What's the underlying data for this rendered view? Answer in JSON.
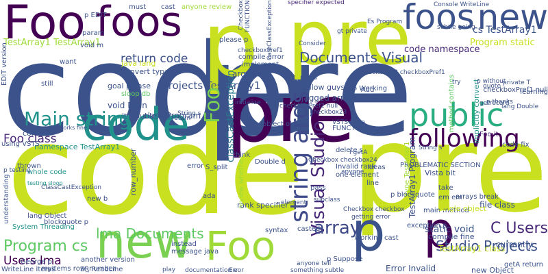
{
  "cloud": {
    "words": [
      {
        "text": "code",
        "color": "#3b528b"
      },
      {
        "text": "pre",
        "color": "#3b528b"
      },
      {
        "text": "code",
        "color": "#c8e020"
      },
      {
        "text": "pre",
        "color": "#c8e020"
      },
      {
        "text": "pre",
        "color": "#440154"
      },
      {
        "text": "p",
        "color": "#c8e020"
      },
      {
        "text": "pre",
        "color": "#c8e020"
      },
      {
        "text": "Foo",
        "color": "#440154"
      },
      {
        "text": "foos",
        "color": "#440154"
      },
      {
        "text": "foos",
        "color": "#3b528b"
      },
      {
        "text": "new",
        "color": "#3b528b"
      },
      {
        "text": "code",
        "color": "#21918c"
      },
      {
        "text": "new",
        "color": "#7ad151"
      },
      {
        "text": "Foo",
        "color": "#a0da39"
      },
      {
        "text": "p",
        "color": "#3b528b"
      },
      {
        "text": "p",
        "color": "#440154"
      },
      {
        "text": "public",
        "color": "#28ae80"
      },
      {
        "text": "following",
        "color": "#440154"
      },
      {
        "text": "Main string",
        "color": "#21918c"
      },
      {
        "text": "Documents Visual",
        "color": "#3b528b"
      },
      {
        "text": "Projects TestArray1",
        "color": "#3b528b"
      },
      {
        "text": "return code",
        "color": "#3b528b"
      },
      {
        "text": "TestArray1 TestArray1",
        "color": "#a0da39"
      },
      {
        "text": "code namespace",
        "color": "#482878"
      },
      {
        "text": "cs TestArray1",
        "color": "#3b528b"
      },
      {
        "text": "Program static",
        "color": "#c8e020"
      },
      {
        "text": "string args",
        "color": "#3e4a89"
      },
      {
        "text": "Visual Studio",
        "color": "#482878"
      },
      {
        "text": "classCastException",
        "color": "#2a788e"
      },
      {
        "text": "Foo",
        "color": "#7ad151"
      },
      {
        "text": "lma Documents",
        "color": "#5ec962"
      },
      {
        "text": "Program cs",
        "color": "#5ec962"
      },
      {
        "text": "Users lma",
        "color": "#440154"
      },
      {
        "text": "array",
        "color": "#3e4a89"
      },
      {
        "text": "C Users",
        "color": "#482878"
      },
      {
        "text": "Studio Projects",
        "color": "#3b528b"
      },
      {
        "text": "TestArray1 class",
        "color": "#c8e020"
      },
      {
        "text": "static void",
        "color": "#3b528b"
      },
      {
        "text": "Error Invalid",
        "color": "#3b528b"
      },
      {
        "text": "class Program",
        "color": "#3b528b"
      },
      {
        "text": "void Main",
        "color": "#3b528b"
      },
      {
        "text": "args Foo",
        "color": "#3b528b"
      },
      {
        "text": "jagged array",
        "color": "#3b528b"
      },
      {
        "text": "fellow guys",
        "color": "#3b528b"
      },
      {
        "text": "Foo class",
        "color": "#482878"
      },
      {
        "text": "namespace TestArray1",
        "color": "#21918c"
      },
      {
        "text": "java lang",
        "color": "#c8e020"
      },
      {
        "text": "file class",
        "color": "#3b528b"
      },
      {
        "text": "currently",
        "color": "#3b528b"
      },
      {
        "text": "specifier expected",
        "color": "#482878"
      },
      {
        "text": "Es Program",
        "color": "#3b528b"
      },
      {
        "text": "Vista bit",
        "color": "#3b528b"
      },
      {
        "text": "Foo it",
        "color": "#482878"
      },
      {
        "text": "whole code",
        "color": "#21918c"
      },
      {
        "text": "testing sloop",
        "color": "#21918c"
      },
      {
        "text": "rank specifier",
        "color": "#3b528b"
      },
      {
        "text": "review whether",
        "color": "#a0da39"
      },
      {
        "text": "TestArray1 Program",
        "color": "#3b528b"
      },
      {
        "text": "Invalid rank",
        "color": "#3b528b"
      },
      {
        "text": "FUNCTION",
        "color": "#3b528b"
      },
      {
        "text": "one element",
        "color": "#3b528b"
      },
      {
        "text": "PROBLEMATIC SECTION",
        "color": "#3b528b"
      },
      {
        "text": "delete s",
        "color": "#3b528b"
      },
      {
        "text": "code fix",
        "color": "#3b528b"
      },
      {
        "text": "lt Double",
        "color": "#3b528b"
      },
      {
        "text": "Double d",
        "color": "#3b528b"
      },
      {
        "text": "object object",
        "color": "#3b528b"
      },
      {
        "text": "goal please",
        "color": "#3b528b"
      },
      {
        "text": "sloop db",
        "color": "#5ec962"
      },
      {
        "text": "convert type",
        "color": "#3b528b"
      },
      {
        "text": "implicitly convert",
        "color": "#21918c"
      },
      {
        "text": "method contains",
        "color": "#5ec962"
      },
      {
        "text": "learning",
        "color": "#3b528b"
      },
      {
        "text": "checkboxPref1 null",
        "color": "#3b528b"
      },
      {
        "text": "ideas",
        "color": "#3b528b"
      },
      {
        "text": "line",
        "color": "#3b528b"
      },
      {
        "text": "take",
        "color": "#3b528b"
      },
      {
        "text": "arrays break",
        "color": "#3b528b"
      },
      {
        "text": "compile fine",
        "color": "#3b528b"
      },
      {
        "text": "main method",
        "color": "#3b528b"
      },
      {
        "text": "exception p",
        "color": "#3b528b"
      },
      {
        "text": "Working cast",
        "color": "#3b528b"
      },
      {
        "text": "pass",
        "color": "#3b528b"
      },
      {
        "text": "casted",
        "color": "#3b528b"
      },
      {
        "text": "syntax",
        "color": "#3b528b"
      },
      {
        "text": "instead",
        "color": "#3b528b"
      },
      {
        "text": "message java",
        "color": "#3b528b"
      },
      {
        "text": "System Threading",
        "color": "#21918c"
      },
      {
        "text": "new b",
        "color": "#3b528b"
      },
      {
        "text": "S_split",
        "color": "#3b528b"
      },
      {
        "text": "blockquote p",
        "color": "#3b528b"
      },
      {
        "text": "row_number",
        "color": "#3b528b"
      },
      {
        "text": "think",
        "color": "#3b528b"
      },
      {
        "text": "thrown",
        "color": "#3b528b"
      },
      {
        "text": "correct",
        "color": "#3b528b"
      },
      {
        "text": "using VSTS",
        "color": "#3b528b"
      },
      {
        "text": "EDIT version",
        "color": "#3b528b"
      },
      {
        "text": "still",
        "color": "#3b528b"
      },
      {
        "text": "want",
        "color": "#3b528b"
      },
      {
        "text": "void m",
        "color": "#3b528b"
      },
      {
        "text": "param",
        "color": "#3b528b"
      },
      {
        "text": "p EDIT",
        "color": "#3b528b"
      },
      {
        "text": "must",
        "color": "#3b528b"
      },
      {
        "text": "cast",
        "color": "#3b528b"
      },
      {
        "text": "anyone review",
        "color": "#a0da39"
      },
      {
        "text": "please p",
        "color": "#3b528b"
      },
      {
        "text": "compile error",
        "color": "#3b528b"
      },
      {
        "text": "implement",
        "color": "#3b528b"
      },
      {
        "text": "need",
        "color": "#3b528b"
      },
      {
        "text": "o Working",
        "color": "#3b528b"
      },
      {
        "text": "Add",
        "color": "#3b528b"
      },
      {
        "text": "Console WriteLine",
        "color": "#3b528b"
      },
      {
        "text": "subtle going",
        "color": "#3b528b"
      },
      {
        "text": "gt private",
        "color": "#3b528b"
      },
      {
        "text": "error",
        "color": "#3b528b"
      },
      {
        "text": "ada",
        "color": "#3b528b"
      },
      {
        "text": "em em",
        "color": "#3b528b"
      },
      {
        "text": "single object",
        "color": "#c8e020"
      },
      {
        "text": "type TestArray1",
        "color": "#a0da39"
      },
      {
        "text": "p blockquote",
        "color": "#3b528b"
      },
      {
        "text": "p Suppose",
        "color": "#3b528b"
      },
      {
        "text": "new Object",
        "color": "#3b528b"
      },
      {
        "text": "another version",
        "color": "#3b528b"
      },
      {
        "text": "getA return",
        "color": "#3b528b"
      },
      {
        "text": "understanding",
        "color": "#3b528b"
      },
      {
        "text": "myItems row_number",
        "color": "#3b528b"
      },
      {
        "text": "SR ReadLine",
        "color": "#3b528b"
      },
      {
        "text": "WriteLine Items",
        "color": "#3b528b"
      },
      {
        "text": "George p",
        "color": "#3b528b"
      },
      {
        "text": "lang Object",
        "color": "#3b528b"
      },
      {
        "text": "S SR works fine",
        "color": "#3b528b"
      },
      {
        "text": "p testing",
        "color": "#3b528b"
      },
      {
        "text": "Checkbox checkbox24",
        "color": "#3b528b"
      },
      {
        "text": "checkboxPref2 null",
        "color": "#3b528b"
      },
      {
        "text": "checkbox23 checkboxPref1",
        "color": "#3b528b"
      },
      {
        "text": "null checkbox23",
        "color": "#3b528b"
      },
      {
        "text": "I getA",
        "color": "#3b528b"
      },
      {
        "text": "Checkbox checkbox",
        "color": "#3b528b"
      },
      {
        "text": "VSTS Vista",
        "color": "#3b528b"
      },
      {
        "text": "anyone",
        "color": "#3b528b"
      },
      {
        "text": "subclass",
        "color": "#3b528b"
      },
      {
        "text": "String s",
        "color": "#3b528b"
      },
      {
        "text": "quote",
        "color": "#3b528b"
      },
      {
        "text": "try",
        "color": "#3b528b"
      },
      {
        "text": "private T",
        "color": "#3b528b"
      },
      {
        "text": "p without",
        "color": "#3b528b"
      },
      {
        "text": "lang Double",
        "color": "#3b528b"
      },
      {
        "text": "getrecord",
        "color": "#3b528b"
      },
      {
        "text": "p thanks",
        "color": "#3b528b"
      },
      {
        "text": "Foo return",
        "color": "#3b528b"
      },
      {
        "text": "String s",
        "color": "#3b528b"
      },
      {
        "text": "CastClassException",
        "color": "#3b528b"
      },
      {
        "text": "Consider",
        "color": "#3b528b"
      },
      {
        "text": "documentation e",
        "color": "#3b528b"
      },
      {
        "text": "play",
        "color": "#3b528b"
      },
      {
        "text": "Error",
        "color": "#3b528b"
      },
      {
        "text": "something subtle",
        "color": "#3b528b"
      },
      {
        "text": "anyone tell",
        "color": "#3b528b"
      },
      {
        "text": "element",
        "color": "#3b528b"
      },
      {
        "text": "FUNCTION",
        "color": "#3b528b"
      },
      {
        "text": "Checkbox",
        "color": "#3b528b"
      },
      {
        "text": "initialize",
        "color": "#3b528b"
      },
      {
        "text": "getting error",
        "color": "#3b528b"
      },
      {
        "text": "ClassCastException",
        "color": "#3b528b"
      },
      {
        "text": "checkboxPref1",
        "color": "#3b528b"
      }
    ]
  }
}
